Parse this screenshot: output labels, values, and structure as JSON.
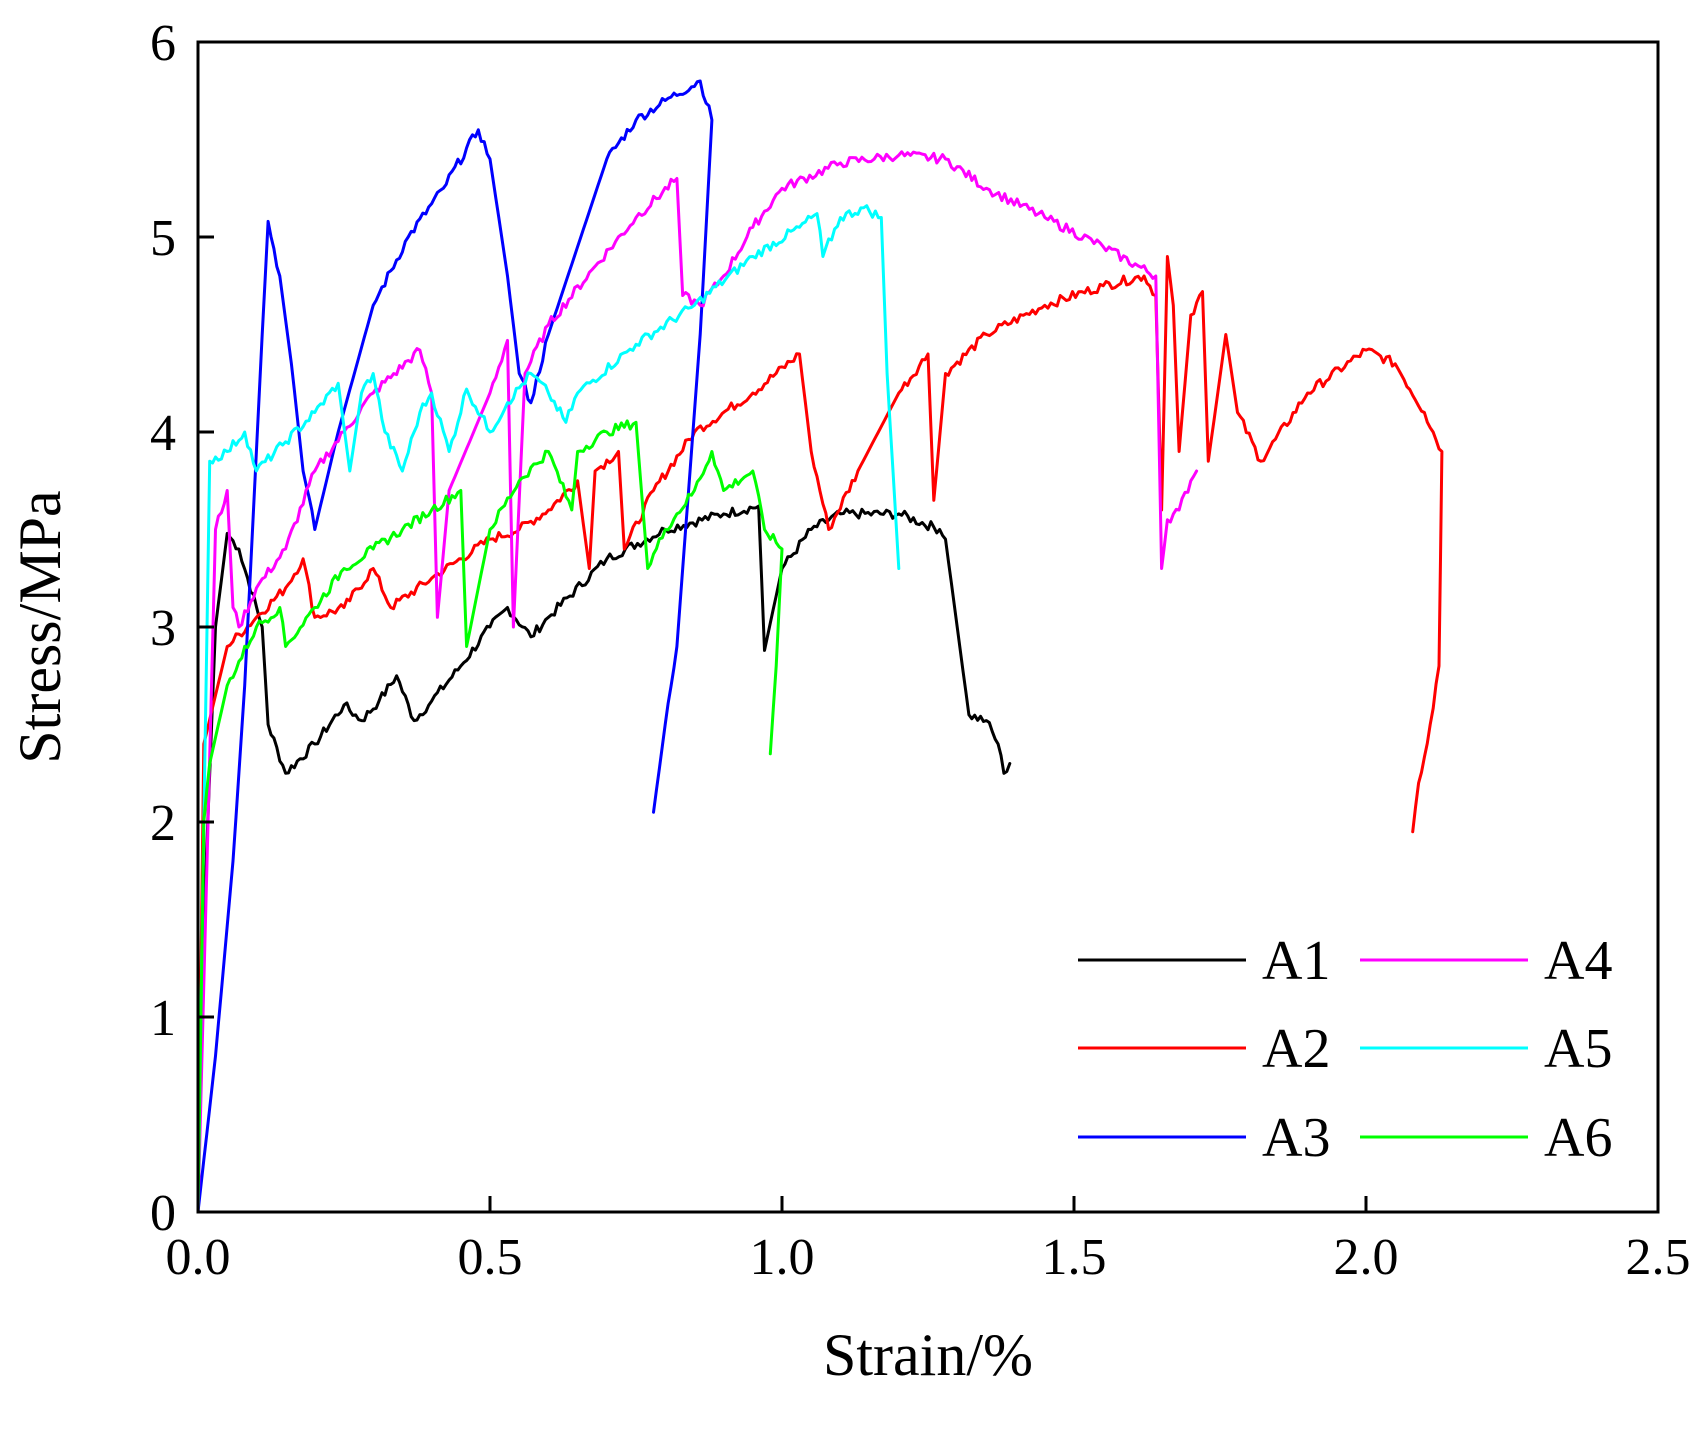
{
  "chart_data": {
    "type": "line",
    "title": "",
    "xlabel": "Strain/%",
    "ylabel": "Stress/MPa",
    "xlim": [
      0,
      2.5
    ],
    "ylim": [
      0,
      6
    ],
    "xticks": [
      0.0,
      0.5,
      1.0,
      1.5,
      2.0,
      2.5
    ],
    "xtick_labels": [
      "0.0",
      "0.5",
      "1.0",
      "1.5",
      "2.0",
      "2.5"
    ],
    "yticks": [
      0,
      1,
      2,
      3,
      4,
      5,
      6
    ],
    "ytick_labels": [
      "0",
      "1",
      "2",
      "3",
      "4",
      "5",
      "6"
    ],
    "grid": false,
    "legend_position": "bottom-right",
    "series": [
      {
        "name": "A1",
        "color": "#000000",
        "points": [
          [
            0,
            0
          ],
          [
            0.01,
            1.5
          ],
          [
            0.03,
            3.0
          ],
          [
            0.05,
            3.48
          ],
          [
            0.07,
            3.4
          ],
          [
            0.11,
            3.0
          ],
          [
            0.12,
            2.5
          ],
          [
            0.15,
            2.25
          ],
          [
            0.2,
            2.4
          ],
          [
            0.25,
            2.6
          ],
          [
            0.28,
            2.52
          ],
          [
            0.31,
            2.62
          ],
          [
            0.34,
            2.75
          ],
          [
            0.37,
            2.52
          ],
          [
            0.4,
            2.62
          ],
          [
            0.45,
            2.8
          ],
          [
            0.5,
            3.0
          ],
          [
            0.53,
            3.1
          ],
          [
            0.57,
            2.95
          ],
          [
            0.6,
            3.05
          ],
          [
            0.7,
            3.35
          ],
          [
            0.8,
            3.5
          ],
          [
            0.9,
            3.58
          ],
          [
            0.96,
            3.62
          ],
          [
            0.97,
            2.88
          ],
          [
            1.0,
            3.3
          ],
          [
            1.05,
            3.5
          ],
          [
            1.1,
            3.58
          ],
          [
            1.2,
            3.58
          ],
          [
            1.27,
            3.5
          ],
          [
            1.28,
            3.45
          ],
          [
            1.3,
            3.0
          ],
          [
            1.32,
            2.55
          ],
          [
            1.35,
            2.52
          ],
          [
            1.37,
            2.4
          ],
          [
            1.38,
            2.25
          ],
          [
            1.39,
            2.3
          ]
        ]
      },
      {
        "name": "A2",
        "color": "#ff0000",
        "points": [
          [
            0,
            0
          ],
          [
            0.01,
            2.4
          ],
          [
            0.05,
            2.9
          ],
          [
            0.1,
            3.05
          ],
          [
            0.15,
            3.2
          ],
          [
            0.18,
            3.35
          ],
          [
            0.2,
            3.05
          ],
          [
            0.25,
            3.1
          ],
          [
            0.3,
            3.3
          ],
          [
            0.33,
            3.1
          ],
          [
            0.4,
            3.25
          ],
          [
            0.5,
            3.45
          ],
          [
            0.55,
            3.5
          ],
          [
            0.6,
            3.6
          ],
          [
            0.65,
            3.75
          ],
          [
            0.67,
            3.3
          ],
          [
            0.68,
            3.8
          ],
          [
            0.72,
            3.9
          ],
          [
            0.73,
            3.4
          ],
          [
            0.78,
            3.7
          ],
          [
            0.85,
            4.0
          ],
          [
            0.95,
            4.2
          ],
          [
            1.03,
            4.4
          ],
          [
            1.05,
            3.9
          ],
          [
            1.08,
            3.5
          ],
          [
            1.13,
            3.8
          ],
          [
            1.2,
            4.2
          ],
          [
            1.25,
            4.4
          ],
          [
            1.26,
            3.65
          ],
          [
            1.28,
            4.3
          ],
          [
            1.35,
            4.5
          ],
          [
            1.45,
            4.65
          ],
          [
            1.55,
            4.75
          ],
          [
            1.62,
            4.8
          ],
          [
            1.64,
            4.7
          ],
          [
            1.65,
            3.6
          ],
          [
            1.66,
            4.9
          ],
          [
            1.67,
            4.65
          ],
          [
            1.68,
            3.9
          ],
          [
            1.7,
            4.6
          ],
          [
            1.72,
            4.72
          ],
          [
            1.73,
            3.85
          ],
          [
            1.76,
            4.5
          ],
          [
            1.78,
            4.1
          ],
          [
            1.82,
            3.85
          ],
          [
            1.9,
            4.2
          ],
          [
            2.0,
            4.42
          ],
          [
            2.05,
            4.35
          ],
          [
            2.1,
            4.1
          ],
          [
            2.13,
            3.9
          ],
          [
            2.125,
            2.8
          ],
          [
            2.11,
            2.5
          ],
          [
            2.09,
            2.2
          ],
          [
            2.08,
            1.95
          ]
        ]
      },
      {
        "name": "A3",
        "color": "#0000ff",
        "points": [
          [
            0,
            0
          ],
          [
            0.03,
            0.8
          ],
          [
            0.06,
            1.8
          ],
          [
            0.08,
            2.7
          ],
          [
            0.11,
            4.5
          ],
          [
            0.12,
            5.08
          ],
          [
            0.14,
            4.8
          ],
          [
            0.16,
            4.35
          ],
          [
            0.18,
            3.8
          ],
          [
            0.2,
            3.5
          ],
          [
            0.24,
            4.0
          ],
          [
            0.3,
            4.65
          ],
          [
            0.36,
            5.0
          ],
          [
            0.42,
            5.25
          ],
          [
            0.48,
            5.55
          ],
          [
            0.5,
            5.4
          ],
          [
            0.53,
            4.8
          ],
          [
            0.55,
            4.3
          ],
          [
            0.57,
            4.15
          ],
          [
            0.6,
            4.5
          ],
          [
            0.65,
            4.95
          ],
          [
            0.7,
            5.4
          ],
          [
            0.75,
            5.6
          ],
          [
            0.8,
            5.7
          ],
          [
            0.86,
            5.8
          ],
          [
            0.88,
            5.6
          ],
          [
            0.86,
            4.5
          ],
          [
            0.84,
            3.7
          ],
          [
            0.82,
            2.9
          ],
          [
            0.8,
            2.5
          ],
          [
            0.78,
            2.05
          ]
        ]
      },
      {
        "name": "A4",
        "color": "#ff00ff",
        "points": [
          [
            0,
            0
          ],
          [
            0.03,
            3.5
          ],
          [
            0.05,
            3.7
          ],
          [
            0.06,
            3.1
          ],
          [
            0.07,
            3.0
          ],
          [
            0.1,
            3.2
          ],
          [
            0.15,
            3.4
          ],
          [
            0.2,
            3.8
          ],
          [
            0.25,
            4.0
          ],
          [
            0.3,
            4.2
          ],
          [
            0.38,
            4.42
          ],
          [
            0.4,
            4.2
          ],
          [
            0.41,
            3.05
          ],
          [
            0.43,
            3.7
          ],
          [
            0.5,
            4.2
          ],
          [
            0.53,
            4.47
          ],
          [
            0.54,
            3.0
          ],
          [
            0.56,
            4.3
          ],
          [
            0.6,
            4.55
          ],
          [
            0.68,
            4.85
          ],
          [
            0.75,
            5.1
          ],
          [
            0.82,
            5.3
          ],
          [
            0.83,
            4.7
          ],
          [
            0.86,
            4.65
          ],
          [
            0.9,
            4.8
          ],
          [
            0.95,
            5.05
          ],
          [
            1.0,
            5.25
          ],
          [
            1.1,
            5.38
          ],
          [
            1.2,
            5.42
          ],
          [
            1.28,
            5.4
          ],
          [
            1.35,
            5.25
          ],
          [
            1.45,
            5.1
          ],
          [
            1.55,
            4.95
          ],
          [
            1.64,
            4.8
          ],
          [
            1.65,
            3.3
          ],
          [
            1.66,
            3.55
          ],
          [
            1.68,
            3.6
          ],
          [
            1.7,
            3.75
          ],
          [
            1.71,
            3.8
          ]
        ]
      },
      {
        "name": "A5",
        "color": "#00ffff",
        "points": [
          [
            0,
            0
          ],
          [
            0.01,
            2.0
          ],
          [
            0.02,
            3.85
          ],
          [
            0.05,
            3.9
          ],
          [
            0.08,
            4.0
          ],
          [
            0.1,
            3.8
          ],
          [
            0.15,
            3.95
          ],
          [
            0.2,
            4.1
          ],
          [
            0.24,
            4.25
          ],
          [
            0.26,
            3.8
          ],
          [
            0.28,
            4.2
          ],
          [
            0.3,
            4.3
          ],
          [
            0.32,
            4.0
          ],
          [
            0.35,
            3.8
          ],
          [
            0.38,
            4.1
          ],
          [
            0.4,
            4.2
          ],
          [
            0.43,
            3.9
          ],
          [
            0.46,
            4.22
          ],
          [
            0.5,
            4.0
          ],
          [
            0.53,
            4.15
          ],
          [
            0.57,
            4.3
          ],
          [
            0.6,
            4.2
          ],
          [
            0.63,
            4.05
          ],
          [
            0.65,
            4.2
          ],
          [
            0.75,
            4.45
          ],
          [
            0.85,
            4.65
          ],
          [
            0.95,
            4.9
          ],
          [
            1.03,
            5.05
          ],
          [
            1.06,
            5.12
          ],
          [
            1.07,
            4.9
          ],
          [
            1.1,
            5.1
          ],
          [
            1.14,
            5.15
          ],
          [
            1.17,
            5.1
          ],
          [
            1.18,
            4.3
          ],
          [
            1.2,
            3.3
          ]
        ]
      },
      {
        "name": "A6",
        "color": "#00ff00",
        "points": [
          [
            0,
            0
          ],
          [
            0.01,
            2.0
          ],
          [
            0.02,
            2.3
          ],
          [
            0.05,
            2.7
          ],
          [
            0.1,
            3.0
          ],
          [
            0.14,
            3.1
          ],
          [
            0.15,
            2.9
          ],
          [
            0.2,
            3.1
          ],
          [
            0.25,
            3.3
          ],
          [
            0.3,
            3.4
          ],
          [
            0.35,
            3.5
          ],
          [
            0.4,
            3.6
          ],
          [
            0.45,
            3.7
          ],
          [
            0.46,
            2.9
          ],
          [
            0.5,
            3.5
          ],
          [
            0.55,
            3.75
          ],
          [
            0.6,
            3.9
          ],
          [
            0.64,
            3.6
          ],
          [
            0.65,
            3.9
          ],
          [
            0.7,
            4.0
          ],
          [
            0.75,
            4.05
          ],
          [
            0.77,
            3.3
          ],
          [
            0.8,
            3.5
          ],
          [
            0.85,
            3.7
          ],
          [
            0.88,
            3.9
          ],
          [
            0.9,
            3.7
          ],
          [
            0.95,
            3.8
          ],
          [
            0.97,
            3.5
          ],
          [
            1.0,
            3.4
          ],
          [
            0.99,
            2.8
          ],
          [
            0.98,
            2.35
          ]
        ]
      }
    ]
  }
}
